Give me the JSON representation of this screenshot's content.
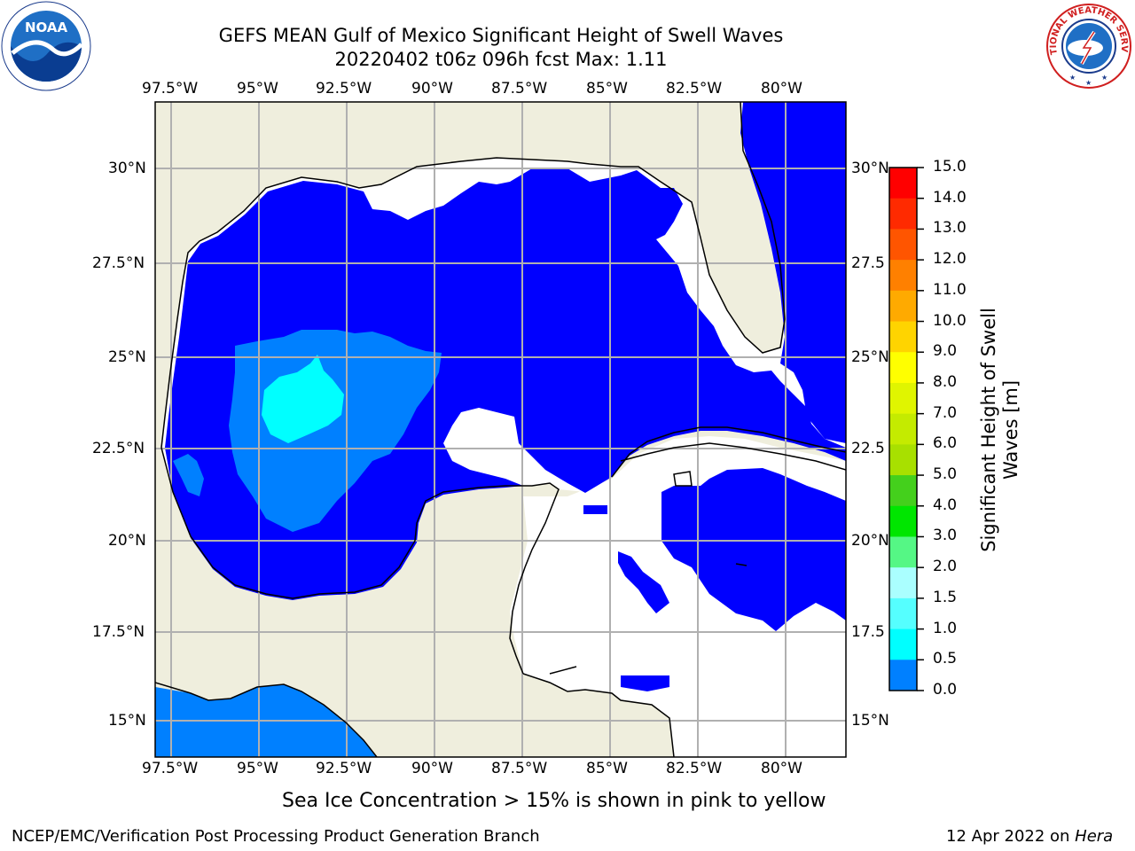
{
  "title": {
    "line1": "GEFS MEAN Gulf of Mexico Significant Height of Swell Waves",
    "line2": "20220402 t06z 096h fcst   Max: 1.11"
  },
  "axes": {
    "lon_ticks": [
      "97.5°W",
      "95°W",
      "92.5°W",
      "90°W",
      "87.5°W",
      "85°W",
      "82.5°W",
      "80°W"
    ],
    "lat_ticks": [
      "30°N",
      "27.5°N",
      "25°N",
      "22.5°N",
      "20°N",
      "17.5°N",
      "15°N"
    ],
    "right_lat_ticks": [
      "30°N",
      "27.5",
      "25°N",
      "22.5",
      "20°N",
      "17.5",
      "15°N"
    ]
  },
  "colorbar": {
    "title_line1": "Significant Height of Swell",
    "title_line2": "Waves [m]",
    "labels": [
      "15.0",
      "14.0",
      "13.0",
      "12.0",
      "11.0",
      "10.0",
      "9.0",
      "8.0",
      "7.0",
      "6.0",
      "5.0",
      "4.0",
      "3.0",
      "2.0",
      "1.5",
      "1.0",
      "0.5",
      "0.0"
    ],
    "colors": [
      "#ff0000",
      "#ff2a00",
      "#ff5500",
      "#ff8000",
      "#ffaa00",
      "#ffd400",
      "#ffff00",
      "#e0f500",
      "#c4eb00",
      "#a8e000",
      "#44d01c",
      "#00e600",
      "#55f785",
      "#aaffff",
      "#55ffff",
      "#00ffff",
      "#0080ff",
      "#0000ff"
    ]
  },
  "map_colors": {
    "land": "#efeedd",
    "no_data": "#ffffff",
    "swell_0_05": "#0000ff",
    "swell_05_1": "#0080ff",
    "swell_1_15": "#00ffff",
    "grid": "#b0b0b0"
  },
  "note": "Sea Ice Concentration > 15% is shown in pink to yellow",
  "footer": {
    "left": "NCEP/EMC/Verification Post Processing Product Generation Branch",
    "right_date": "12 Apr 2022 on ",
    "right_machine": "Hera"
  },
  "logos": {
    "noaa_text": "NOAA",
    "nws_text": "NATIONAL WEATHER SERVICE"
  }
}
